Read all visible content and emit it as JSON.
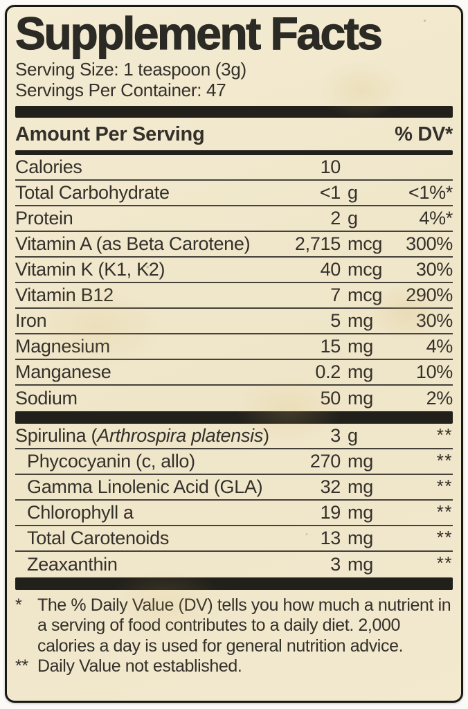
{
  "colors": {
    "paper": "#f1e8cd",
    "ink": "#34302a",
    "bar": "#22201b"
  },
  "label": {
    "title": "Supplement Facts",
    "serving_size": "Serving Size: 1 teaspoon (3g)",
    "servings_per_container": "Servings Per Container: 47",
    "column_headers": {
      "amount": "Amount Per Serving",
      "dv": "% DV*"
    },
    "main_rows": [
      {
        "name": "Calories",
        "amount": "10",
        "unit": "",
        "dv": ""
      },
      {
        "name": "Total Carbohydrate",
        "amount": "<1",
        "unit": "g",
        "dv": "<1%*"
      },
      {
        "name": "Protein",
        "amount": "2",
        "unit": "g",
        "dv": "4%*"
      },
      {
        "name": "Vitamin A (as Beta Carotene)",
        "amount": "2,715",
        "unit": "mcg",
        "dv": "300%"
      },
      {
        "name": "Vitamin K (K1, K2)",
        "amount": "40",
        "unit": "mcg",
        "dv": "30%"
      },
      {
        "name": "Vitamin B12",
        "amount": "7",
        "unit": "mcg",
        "dv": "290%"
      },
      {
        "name": "Iron",
        "amount": "5",
        "unit": "mg",
        "dv": "30%"
      },
      {
        "name": "Magnesium",
        "amount": "15",
        "unit": "mg",
        "dv": "4%"
      },
      {
        "name": "Manganese",
        "amount": "0.2",
        "unit": "mg",
        "dv": "10%"
      },
      {
        "name": "Sodium",
        "amount": "50",
        "unit": "mg",
        "dv": "2%"
      }
    ],
    "botanical_rows": [
      {
        "name": "Spirulina (",
        "name_italic": "Arthrospira platensis",
        "name_suffix": ")",
        "amount": "3",
        "unit": "g",
        "dv": "**",
        "dv_raised": true
      },
      {
        "name": "Phycocyanin (c, allo)",
        "amount": "270",
        "unit": "mg",
        "dv": "**",
        "dv_raised": true,
        "indent": true
      },
      {
        "name": "Gamma Linolenic Acid (GLA)",
        "amount": "32",
        "unit": "mg",
        "dv": "**",
        "dv_raised": true,
        "indent": true
      },
      {
        "name": "Chlorophyll a",
        "amount": "19",
        "unit": "mg",
        "dv": "**",
        "dv_raised": true,
        "indent": true
      },
      {
        "name": "Total Carotenoids",
        "amount": "13",
        "unit": "mg",
        "dv": "**",
        "dv_raised": true,
        "indent": true
      },
      {
        "name": "Zeaxanthin",
        "amount": "3",
        "unit": "mg",
        "dv": "**",
        "dv_raised": true,
        "indent": true
      }
    ],
    "footnotes": [
      {
        "marker": "*",
        "text": "The % Daily Value (DV) tells you how much a nutrient in a serving of food contributes to a daily diet.  2,000 calories a day is used for general nutrition advice."
      },
      {
        "marker": "**",
        "text": "Daily Value not established."
      }
    ]
  }
}
